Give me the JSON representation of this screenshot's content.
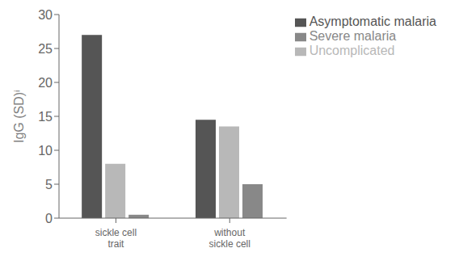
{
  "chart_data": {
    "type": "bar",
    "categories": [
      "sickle cell\ntrait",
      "without\nsickle cell"
    ],
    "series": [
      {
        "name": "Asymptomatic malaria",
        "values": [
          27,
          14.5
        ],
        "color": "#555555"
      },
      {
        "name": "Uncomplicated",
        "values": [
          8,
          13.5
        ],
        "color": "#b8b8b8"
      },
      {
        "name": "Severe malaria",
        "values": [
          0.5,
          5
        ],
        "color": "#888888"
      }
    ],
    "ylabel": "IgG (SD)ⁱ",
    "ylim": [
      0,
      30
    ],
    "yticks": [
      0,
      5,
      10,
      15,
      20,
      25,
      30
    ],
    "grid": false,
    "legend": "upper right"
  }
}
